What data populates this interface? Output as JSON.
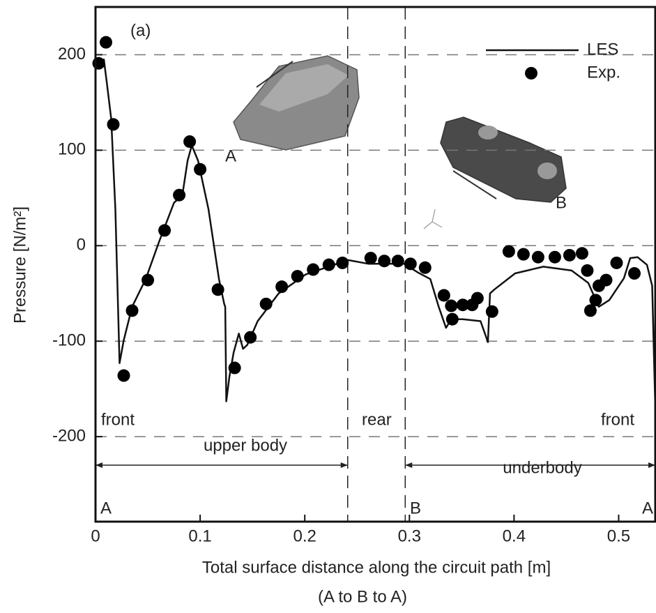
{
  "chart_data": {
    "type": "line",
    "xlabel": [
      "Total surface distance along the circuit path [m]",
      "(A to B to A)"
    ],
    "ylabel": "Pressure [N/m²]",
    "xlim": [
      0,
      0.535
    ],
    "ylim": [
      -289,
      250
    ],
    "xticks": [
      0,
      0.1,
      0.2,
      0.3,
      0.4,
      0.5
    ],
    "yticks": [
      200,
      100,
      0,
      -100,
      -200
    ],
    "grid": "y",
    "legend": "upper right",
    "vlines": [
      0.241,
      0.296
    ],
    "annotations": [
      "(a)",
      "front",
      "rear",
      "front",
      "upper body",
      "underbody",
      "A",
      "B",
      "A",
      "B",
      "A"
    ],
    "series": [
      {
        "name": "LES",
        "type": "line",
        "color": "#111111",
        "x": [
          0,
          0.004,
          0.008,
          0.011,
          0.015,
          0.019,
          0.023,
          0.027,
          0.035,
          0.048,
          0.061,
          0.075,
          0.083,
          0.088,
          0.092,
          0.098,
          0.108,
          0.118,
          0.123,
          0.124,
          0.125,
          0.128,
          0.132,
          0.137,
          0.141,
          0.145,
          0.155,
          0.175,
          0.201,
          0.228,
          0.241,
          0.261,
          0.275,
          0.295,
          0.308,
          0.32,
          0.328,
          0.335,
          0.34,
          0.351,
          0.368,
          0.375,
          0.377,
          0.381,
          0.401,
          0.428,
          0.455,
          0.471,
          0.481,
          0.491,
          0.505,
          0.511,
          0.518,
          0.527,
          0.532,
          0.535
        ],
        "values": [
          184,
          193,
          195,
          169,
          133,
          38,
          -123,
          -99,
          -64,
          -35,
          5,
          45,
          53,
          89,
          105,
          89,
          38,
          -35,
          -61,
          -64,
          -163,
          -137,
          -112,
          -92,
          -108,
          -104,
          -79,
          -50,
          -30,
          -20,
          -15,
          -19,
          -19,
          -19,
          -28,
          -35,
          -64,
          -86,
          -77,
          -77,
          -79,
          -101,
          -50,
          -46,
          -29,
          -22,
          -26,
          -39,
          -64,
          -57,
          -34,
          -13,
          -12,
          -20,
          -42,
          -170
        ]
      },
      {
        "name": "Exp.",
        "type": "scatter",
        "color": "#000000",
        "x": [
          0.003,
          0.01,
          0.017,
          0.027,
          0.035,
          0.05,
          0.066,
          0.08,
          0.09,
          0.1,
          0.117,
          0.133,
          0.148,
          0.163,
          0.178,
          0.193,
          0.208,
          0.223,
          0.236,
          0.263,
          0.276,
          0.289,
          0.301,
          0.315,
          0.333,
          0.34,
          0.341,
          0.351,
          0.36,
          0.365,
          0.379,
          0.395,
          0.409,
          0.423,
          0.439,
          0.453,
          0.465,
          0.47,
          0.473,
          0.478,
          0.481,
          0.488,
          0.498,
          0.515
        ],
        "values": [
          191,
          213,
          127,
          -136,
          -68,
          -36,
          16,
          53,
          109,
          80,
          -46,
          -128,
          -96,
          -61,
          -43,
          -32,
          -25,
          -20,
          -18,
          -13,
          -16,
          -16,
          -19,
          -23,
          -52,
          -63,
          -77,
          -62,
          -62,
          -55,
          -69,
          -6,
          -9,
          -12,
          -12,
          -10,
          -8,
          -26,
          -68,
          -57,
          -42,
          -36,
          -18,
          -29
        ]
      }
    ]
  }
}
